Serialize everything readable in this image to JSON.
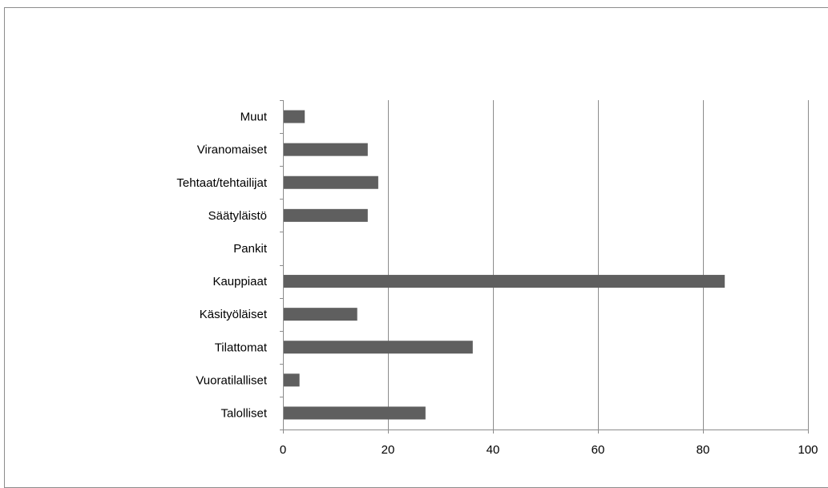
{
  "chart_data": {
    "type": "bar",
    "orientation": "horizontal",
    "categories": [
      "Talolliset",
      "Vuoratilalliset",
      "Tilattomat",
      "Käsityöläiset",
      "Kauppiaat",
      "Pankit",
      "Säätyläistö",
      "Tehtaat/tehtailijat",
      "Viranomaiset",
      "Muut"
    ],
    "values": [
      27,
      3,
      36,
      14,
      84,
      0,
      16,
      18,
      16,
      4
    ],
    "xlim": [
      0,
      100
    ],
    "xticks": [
      0,
      20,
      40,
      60,
      80,
      100
    ],
    "grid": true,
    "bar_color": "#5f5f5f",
    "gridline_color": "#8c8c8c"
  }
}
